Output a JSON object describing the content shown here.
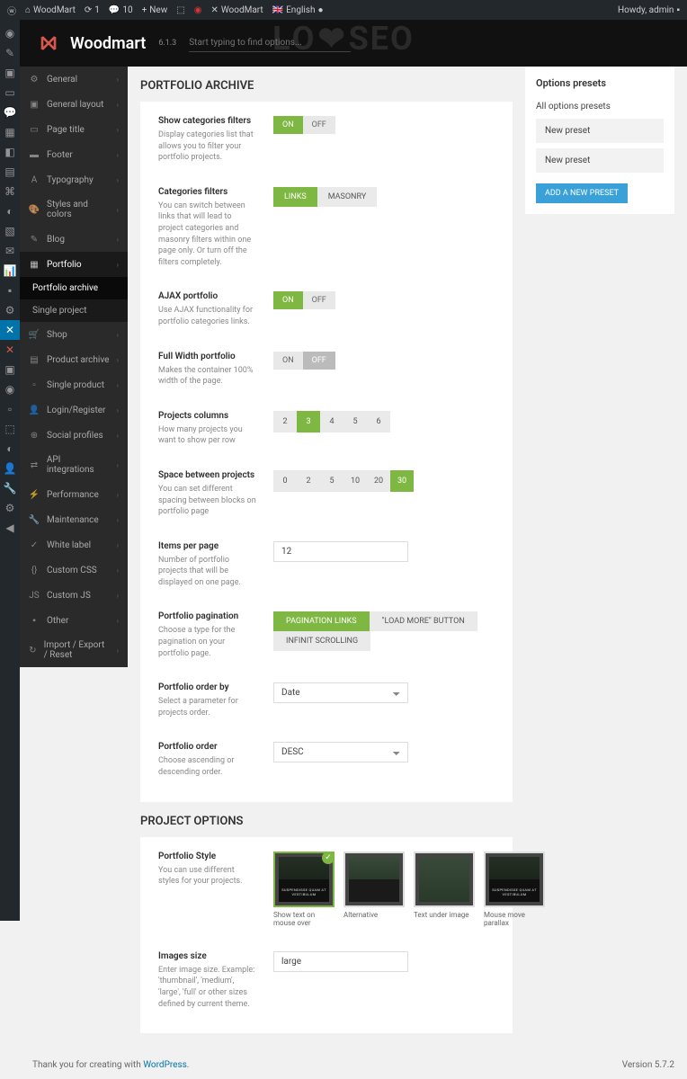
{
  "adminbar": {
    "site": "WoodMart",
    "comments": "1",
    "updates": "10",
    "new": "New",
    "woodmart_link": "WoodMart",
    "lang": "English",
    "howdy": "Howdy, admin"
  },
  "header": {
    "brand": "Woodmart",
    "version": "6.1.3",
    "search_placeholder": "Start typing to find options..."
  },
  "watermark": "LOYSEO",
  "sidebar": {
    "items": [
      {
        "label": "General",
        "icon": "⚙"
      },
      {
        "label": "General layout",
        "icon": "▣"
      },
      {
        "label": "Page title",
        "icon": "▭"
      },
      {
        "label": "Footer",
        "icon": "▬"
      },
      {
        "label": "Typography",
        "icon": "A"
      },
      {
        "label": "Styles and colors",
        "icon": "🎨"
      },
      {
        "label": "Blog",
        "icon": "✎"
      },
      {
        "label": "Portfolio",
        "icon": "▦",
        "active": true
      },
      {
        "label": "Shop",
        "icon": "🛒"
      },
      {
        "label": "Product archive",
        "icon": "▤"
      },
      {
        "label": "Single product",
        "icon": "▫"
      },
      {
        "label": "Login/Register",
        "icon": "👤"
      },
      {
        "label": "Social profiles",
        "icon": "⊕"
      },
      {
        "label": "API integrations",
        "icon": "⇄"
      },
      {
        "label": "Performance",
        "icon": "⚡"
      },
      {
        "label": "Maintenance",
        "icon": "🔧"
      },
      {
        "label": "White label",
        "icon": "✓"
      },
      {
        "label": "Custom CSS",
        "icon": "{}"
      },
      {
        "label": "Custom JS",
        "icon": "JS"
      },
      {
        "label": "Other",
        "icon": "▪"
      },
      {
        "label": "Import / Export / Reset",
        "icon": "↻"
      }
    ],
    "sub": [
      {
        "label": "Portfolio archive",
        "active": true
      },
      {
        "label": "Single project"
      }
    ]
  },
  "sections": {
    "archive_title": "PORTFOLIO ARCHIVE",
    "project_title": "PROJECT OPTIONS"
  },
  "opts": {
    "show_cat": {
      "label": "Show categories filters",
      "desc": "Display categories list that allows you to filter your portfolio projects.",
      "on": "ON",
      "off": "OFF",
      "value": "on"
    },
    "cat_filters": {
      "label": "Categories filters",
      "desc": "You can switch between links that will lead to project categories and masonry filters within one page only. Or turn off the filters completely.",
      "o1": "LINKS",
      "o2": "MASONRY",
      "value": "links"
    },
    "ajax": {
      "label": "AJAX portfolio",
      "desc": "Use AJAX functionality for portfolio categories links.",
      "on": "ON",
      "off": "OFF",
      "value": "on"
    },
    "fullwidth": {
      "label": "Full Width portfolio",
      "desc": "Makes the container 100% width of the page.",
      "on": "ON",
      "off": "OFF",
      "value": "off"
    },
    "columns": {
      "label": "Projects columns",
      "desc": "How many projects you want to show per row",
      "opts": [
        "2",
        "3",
        "4",
        "5",
        "6"
      ],
      "value": "3"
    },
    "spacing": {
      "label": "Space between projects",
      "desc": "You can set different spacing between blocks on portfolio page",
      "opts": [
        "0",
        "2",
        "5",
        "10",
        "20",
        "30"
      ],
      "value": "30"
    },
    "perpage": {
      "label": "Items per page",
      "desc": "Number of portfolio projects that will be displayed on one page.",
      "value": "12"
    },
    "pagination": {
      "label": "Portfolio pagination",
      "desc": "Choose a type for the pagination on your portfolio page.",
      "o1": "PAGINATION LINKS",
      "o2": "\"LOAD MORE\" BUTTON",
      "o3": "INFINIT SCROLLING",
      "value": "links"
    },
    "orderby": {
      "label": "Portfolio order by",
      "desc": "Select a parameter for projects order.",
      "value": "Date"
    },
    "order": {
      "label": "Portfolio order",
      "desc": "Choose ascending or descending order.",
      "value": "DESC"
    },
    "style": {
      "label": "Portfolio Style",
      "desc": "You can use different styles for your projects.",
      "cards": [
        {
          "cap": "Show text on mouse over",
          "selected": true,
          "t": "SUSPENDISSE QUAM AT VESTIBULUM"
        },
        {
          "cap": "Alternative",
          "t": ""
        },
        {
          "cap": "Text under image",
          "t": "SUSPENDISSE QUAM AT VESTIBULUM"
        },
        {
          "cap": "Mouse move parallax",
          "t": "SUSPENDISSE QUAM AT VESTIBULUM"
        }
      ]
    },
    "imgsize": {
      "label": "Images size",
      "desc": "Enter image size. Example: 'thumbnail', 'medium', 'large', 'full' or other sizes defined by current theme.",
      "value": "large"
    }
  },
  "presets": {
    "title": "Options presets",
    "subtitle": "All options presets",
    "items": [
      "New preset",
      "New preset"
    ],
    "add": "ADD A NEW PRESET"
  },
  "footer": {
    "thanks": "Thank you for creating with ",
    "wp": "WordPress",
    "version": "Version 5.7.2"
  }
}
